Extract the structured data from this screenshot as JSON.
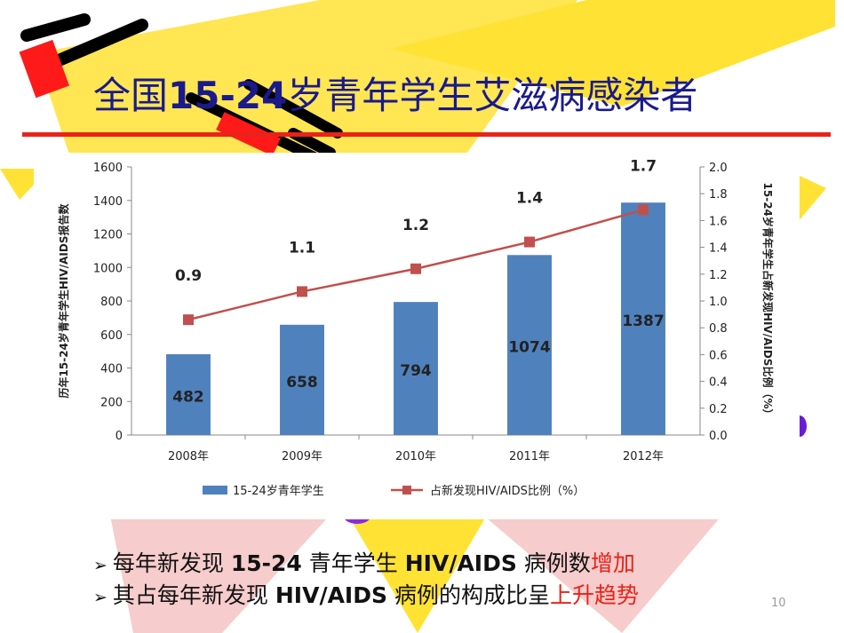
{
  "slide": {
    "title_prefix": "全国",
    "title_range": "15-24",
    "title_suffix": "岁青年学生艾滋病感染者",
    "page_number": "10",
    "accent_color": "#e8231a",
    "title_color": "#1a1a8c"
  },
  "bullets": [
    {
      "a": "每年新发现 ",
      "b": "15-24",
      "c": " 青年学生 ",
      "d": "HIV/AIDS",
      "e": " 病例数",
      "hl": "增加"
    },
    {
      "a": "其占每年新发现 ",
      "b": "HIV/AIDS",
      "c": " 病例的构成比呈",
      "d": "",
      "e": "",
      "hl": "上升趋势"
    }
  ],
  "chart_data": {
    "type": "bar",
    "categories": [
      "2008年",
      "2009年",
      "2010年",
      "2011年",
      "2012年"
    ],
    "series": [
      {
        "name": "15-24岁青年学生",
        "type": "bar",
        "axis": "left",
        "values": [
          482,
          658,
          794,
          1074,
          1387
        ],
        "labels": [
          "482",
          "658",
          "794",
          "1074",
          "1387"
        ],
        "color": "#4f81bd"
      },
      {
        "name": "占新发现HIV/AIDS比例（%）",
        "type": "line",
        "axis": "right",
        "values": [
          0.86,
          1.07,
          1.24,
          1.44,
          1.68
        ],
        "labels": [
          "0.9",
          "1.1",
          "1.2",
          "1.4",
          "1.7"
        ],
        "color": "#c0504d"
      }
    ],
    "ylabel": "历年15-24岁青年学生HIV/AIDS报告数",
    "y2label": "15-24岁青年学生占新发现HIV/AIDS比例（%）",
    "ylim": [
      0,
      1600
    ],
    "y2lim": [
      0,
      2.0
    ],
    "yticks": [
      "0",
      "200",
      "400",
      "600",
      "800",
      "1000",
      "1200",
      "1400",
      "1600"
    ],
    "y2ticks": [
      "0.0",
      "0.2",
      "0.4",
      "0.6",
      "0.8",
      "1.0",
      "1.2",
      "1.4",
      "1.6",
      "1.8",
      "2.0"
    ],
    "legend_position": "bottom",
    "grid": false
  }
}
